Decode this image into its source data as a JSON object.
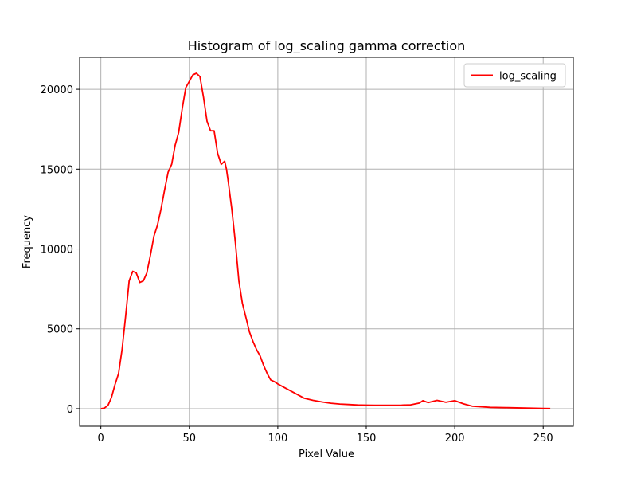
{
  "chart_data": {
    "type": "line",
    "title": "Histogram of log_scaling gamma correction",
    "xlabel": "Pixel Value",
    "ylabel": "Frequency",
    "xlim": [
      -12,
      267
    ],
    "ylim": [
      -1100,
      22000
    ],
    "xticks": [
      0,
      50,
      100,
      150,
      200,
      250
    ],
    "yticks": [
      0,
      5000,
      10000,
      15000,
      20000
    ],
    "grid": true,
    "legend_position": "top-right",
    "colors": {
      "series": "#ff0000",
      "grid": "#b0b0b0"
    },
    "series": [
      {
        "name": "log_scaling",
        "color": "#ff0000",
        "x": [
          0,
          2,
          4,
          6,
          8,
          10,
          12,
          14,
          16,
          18,
          20,
          22,
          24,
          26,
          28,
          30,
          32,
          34,
          36,
          38,
          40,
          42,
          44,
          46,
          48,
          50,
          52,
          54,
          56,
          58,
          60,
          62,
          64,
          66,
          68,
          70,
          71,
          72,
          74,
          76,
          78,
          80,
          82,
          84,
          86,
          88,
          90,
          92,
          94,
          96,
          98,
          100,
          105,
          110,
          115,
          120,
          125,
          130,
          135,
          140,
          145,
          150,
          155,
          160,
          165,
          170,
          175,
          180,
          182,
          185,
          190,
          195,
          200,
          205,
          210,
          220,
          230,
          240,
          250,
          254
        ],
        "y": [
          0,
          40,
          200,
          700,
          1500,
          2200,
          3700,
          5800,
          8000,
          8600,
          8500,
          7900,
          8000,
          8500,
          9600,
          10800,
          11500,
          12500,
          13700,
          14800,
          15300,
          16500,
          17300,
          18800,
          20100,
          20500,
          20900,
          21000,
          20800,
          19500,
          18000,
          17400,
          17400,
          16000,
          15300,
          15500,
          15000,
          14200,
          12500,
          10400,
          8000,
          6600,
          5700,
          4800,
          4200,
          3700,
          3300,
          2700,
          2200,
          1800,
          1700,
          1550,
          1250,
          950,
          650,
          520,
          420,
          340,
          290,
          260,
          230,
          220,
          215,
          210,
          215,
          220,
          240,
          350,
          500,
          380,
          520,
          400,
          500,
          300,
          150,
          80,
          60,
          40,
          20,
          10
        ]
      }
    ]
  }
}
